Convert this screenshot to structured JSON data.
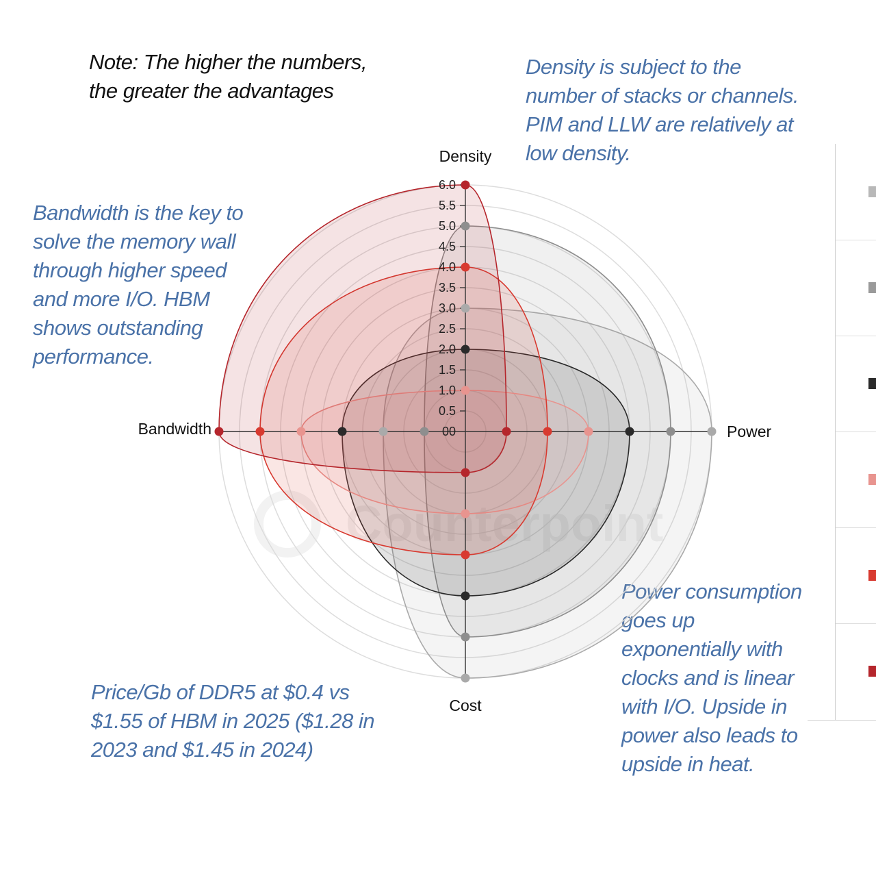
{
  "note": "Note: The higher the numbers, the greater the advantages",
  "annotations": {
    "density": "Density is subject to the number of stacks or channels. PIM and LLW are relatively at low density.",
    "bandwidth": "Bandwidth is the key to solve the memory wall through higher speed and more I/O. HBM shows outstanding performance.",
    "price": "Price/Gb of DDR5 at $0.4 vs $1.55 of HBM in 2025 ($1.28 in 2023 and $1.45 in 2024)",
    "power": "Power consumption goes up exponentially with clocks and is linear with I/O. Upside in power also leads to upside in heat."
  },
  "watermark": "Counterpoint",
  "chart_data": {
    "type": "radar",
    "axes": [
      "Density",
      "Power",
      "Cost",
      "Bandwidth"
    ],
    "range": [
      0,
      6
    ],
    "ticks": [
      "0",
      "0.5",
      "1.0",
      "1.5",
      "2.0",
      "2.5",
      "3.0",
      "3.5",
      "4.0",
      "4.5",
      "5.0",
      "5.5",
      "6.0"
    ],
    "tick_values": [
      0,
      0.5,
      1,
      1.5,
      2,
      2.5,
      3,
      3.5,
      4,
      4.5,
      5,
      5.5,
      6
    ],
    "center_label": "00",
    "grid": true,
    "series": [
      {
        "values": [
          3,
          6,
          6,
          2
        ],
        "color": "#aaaaaa"
      },
      {
        "values": [
          5,
          5,
          5,
          1
        ],
        "color": "#8e8e8e"
      },
      {
        "values": [
          2,
          4,
          4,
          3
        ],
        "color": "#2a2a2a"
      },
      {
        "values": [
          1,
          3,
          2,
          4
        ],
        "color": "#e8948f"
      },
      {
        "values": [
          4,
          2,
          3,
          5
        ],
        "color": "#d83a30"
      },
      {
        "values": [
          6,
          1,
          1,
          6
        ],
        "color": "#b5262c"
      }
    ]
  },
  "legend": {
    "swatches": [
      "#b8b8b8",
      "#9a9a9a",
      "#2a2a2a",
      "#e8948f",
      "#d83a30",
      "#b5262c"
    ]
  }
}
